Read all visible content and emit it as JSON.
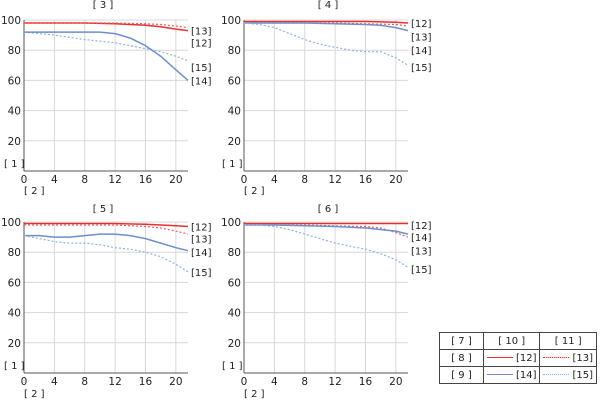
{
  "chart_data": [
    {
      "type": "line",
      "title": "[ 3 ]",
      "ylabel": "[ 1 ]",
      "xlabel": "[ 2 ]",
      "xlim": [
        0,
        21.6
      ],
      "ylim": [
        0,
        100
      ],
      "xticks": [
        0,
        4,
        8,
        12,
        16,
        20
      ],
      "yticks": [
        20,
        40,
        60,
        80,
        100
      ],
      "grid": true,
      "series": [
        {
          "name": "[13]",
          "style": "red-solid",
          "x": [
            0,
            4,
            8,
            12,
            14,
            16,
            18,
            20,
            21.6
          ],
          "y": [
            98,
            98,
            98,
            97.5,
            97,
            96.5,
            95.5,
            94,
            93
          ]
        },
        {
          "name": "[12]",
          "style": "red-dotted",
          "x": [
            0,
            4,
            8,
            12,
            16,
            18,
            20,
            21.6
          ],
          "y": [
            98,
            98,
            98,
            98,
            97.5,
            97,
            96,
            95
          ]
        },
        {
          "name": "[15]",
          "style": "blue-dotted",
          "x": [
            0,
            4,
            8,
            12,
            14,
            16,
            18,
            20,
            21.6
          ],
          "y": [
            92,
            90,
            87,
            85,
            83,
            81,
            79,
            76,
            73
          ]
        },
        {
          "name": "[14]",
          "style": "blue-solid",
          "x": [
            0,
            4,
            8,
            10,
            12,
            14,
            16,
            18,
            20,
            21.6
          ],
          "y": [
            92,
            92,
            92,
            92,
            91,
            88,
            83,
            76,
            67,
            60
          ]
        }
      ],
      "line_labels": [
        {
          "text": "[13]",
          "y": 93
        },
        {
          "text": "[12]",
          "y": 85
        },
        {
          "text": "[15]",
          "y": 69
        },
        {
          "text": "[14]",
          "y": 60
        }
      ]
    },
    {
      "type": "line",
      "title": "[ 4 ]",
      "ylabel": "[ 1 ]",
      "xlabel": "[ 2 ]",
      "xlim": [
        0,
        21.6
      ],
      "ylim": [
        0,
        100
      ],
      "xticks": [
        0,
        4,
        8,
        12,
        16,
        20
      ],
      "yticks": [
        20,
        40,
        60,
        80,
        100
      ],
      "grid": true,
      "series": [
        {
          "name": "[12]",
          "style": "red-solid",
          "x": [
            0,
            4,
            8,
            12,
            16,
            20,
            21.6
          ],
          "y": [
            99,
            99,
            99,
            99,
            99,
            98.5,
            98
          ]
        },
        {
          "name": "[13]",
          "style": "red-dotted",
          "x": [
            0,
            4,
            8,
            12,
            16,
            20,
            21.6
          ],
          "y": [
            98,
            98,
            98,
            98,
            97.5,
            97,
            96
          ]
        },
        {
          "name": "[14]",
          "style": "blue-solid",
          "x": [
            0,
            4,
            8,
            12,
            16,
            18,
            20,
            21.6
          ],
          "y": [
            98,
            98,
            98,
            97.5,
            97,
            96.5,
            95,
            93
          ]
        },
        {
          "name": "[15]",
          "style": "blue-dotted",
          "x": [
            0,
            2,
            4,
            6,
            8,
            10,
            12,
            14,
            16,
            18,
            20,
            21.6
          ],
          "y": [
            98,
            97,
            95,
            91,
            87,
            84,
            82,
            80,
            79,
            79,
            75,
            70
          ]
        }
      ],
      "line_labels": [
        {
          "text": "[12]",
          "y": 98
        },
        {
          "text": "[13]",
          "y": 89
        },
        {
          "text": "[14]",
          "y": 80
        },
        {
          "text": "[15]",
          "y": 69
        }
      ]
    },
    {
      "type": "line",
      "title": "[ 5 ]",
      "ylabel": "[ 1 ]",
      "xlabel": "[ 2 ]",
      "xlim": [
        0,
        21.6
      ],
      "ylim": [
        0,
        100
      ],
      "xticks": [
        0,
        4,
        8,
        12,
        16,
        20
      ],
      "yticks": [
        20,
        40,
        60,
        80,
        100
      ],
      "grid": true,
      "series": [
        {
          "name": "[12]",
          "style": "red-solid",
          "x": [
            0,
            4,
            8,
            12,
            16,
            20,
            21.6
          ],
          "y": [
            99,
            99,
            99,
            99,
            98.5,
            97.5,
            97
          ]
        },
        {
          "name": "[13]",
          "style": "red-dotted",
          "x": [
            0,
            4,
            8,
            12,
            16,
            18,
            20,
            21.6
          ],
          "y": [
            98,
            98,
            98,
            98,
            97,
            96,
            94,
            92
          ]
        },
        {
          "name": "[14]",
          "style": "blue-solid",
          "x": [
            0,
            2,
            4,
            6,
            8,
            10,
            12,
            14,
            16,
            18,
            20,
            21.6
          ],
          "y": [
            91,
            91,
            90,
            90,
            91,
            92,
            92,
            91,
            89,
            86,
            83,
            81
          ]
        },
        {
          "name": "[15]",
          "style": "blue-dotted",
          "x": [
            0,
            2,
            4,
            6,
            8,
            10,
            12,
            14,
            16,
            18,
            20,
            21.6
          ],
          "y": [
            91,
            89,
            87,
            86,
            86,
            85,
            83,
            82,
            80,
            77,
            72,
            67
          ]
        }
      ],
      "line_labels": [
        {
          "text": "[12]",
          "y": 97
        },
        {
          "text": "[13]",
          "y": 89
        },
        {
          "text": "[14]",
          "y": 80
        },
        {
          "text": "[15]",
          "y": 67
        }
      ]
    },
    {
      "type": "line",
      "title": "[ 6 ]",
      "ylabel": "[ 1 ]",
      "xlabel": "[ 2 ]",
      "xlim": [
        0,
        21.6
      ],
      "ylim": [
        0,
        100
      ],
      "xticks": [
        0,
        4,
        8,
        12,
        16,
        20
      ],
      "yticks": [
        20,
        40,
        60,
        80,
        100
      ],
      "grid": true,
      "series": [
        {
          "name": "[12]",
          "style": "red-solid",
          "x": [
            0,
            4,
            8,
            12,
            16,
            20,
            21.6
          ],
          "y": [
            99,
            99,
            99,
            99,
            99,
            99,
            99
          ]
        },
        {
          "name": "[13]",
          "style": "red-dotted",
          "x": [
            0,
            4,
            8,
            12,
            16,
            18,
            20,
            21.6
          ],
          "y": [
            98,
            98,
            98,
            97.5,
            97,
            96,
            93,
            90
          ]
        },
        {
          "name": "[14]",
          "style": "blue-solid",
          "x": [
            0,
            4,
            8,
            12,
            16,
            20,
            21.6
          ],
          "y": [
            98,
            98,
            97.5,
            97,
            96,
            94,
            92
          ]
        },
        {
          "name": "[15]",
          "style": "blue-dotted",
          "x": [
            0,
            2,
            4,
            6,
            8,
            10,
            12,
            14,
            16,
            18,
            20,
            21.6
          ],
          "y": [
            98,
            98,
            97,
            95,
            92,
            89,
            86,
            84,
            82,
            79,
            75,
            70
          ]
        }
      ],
      "line_labels": [
        {
          "text": "[12]",
          "y": 98
        },
        {
          "text": "[14]",
          "y": 90
        },
        {
          "text": "[13]",
          "y": 81
        },
        {
          "text": "[15]",
          "y": 69
        }
      ]
    }
  ],
  "legend": {
    "header": [
      "[ 7 ]",
      "[ 10 ]",
      "[ 11 ]"
    ],
    "rows": [
      {
        "label": "[ 8 ]",
        "solid": "[12]",
        "dotted": "[13]"
      },
      {
        "label": "[ 9 ]",
        "solid": "[14]",
        "dotted": "[15]"
      }
    ]
  },
  "colors": {
    "red-solid": "#e8302f",
    "red-dotted": "#ee5e5e",
    "blue-solid": "#6e8fcc",
    "blue-dotted": "#8fb0e4",
    "grid": "#d8d8d8",
    "axis": "#555555"
  }
}
